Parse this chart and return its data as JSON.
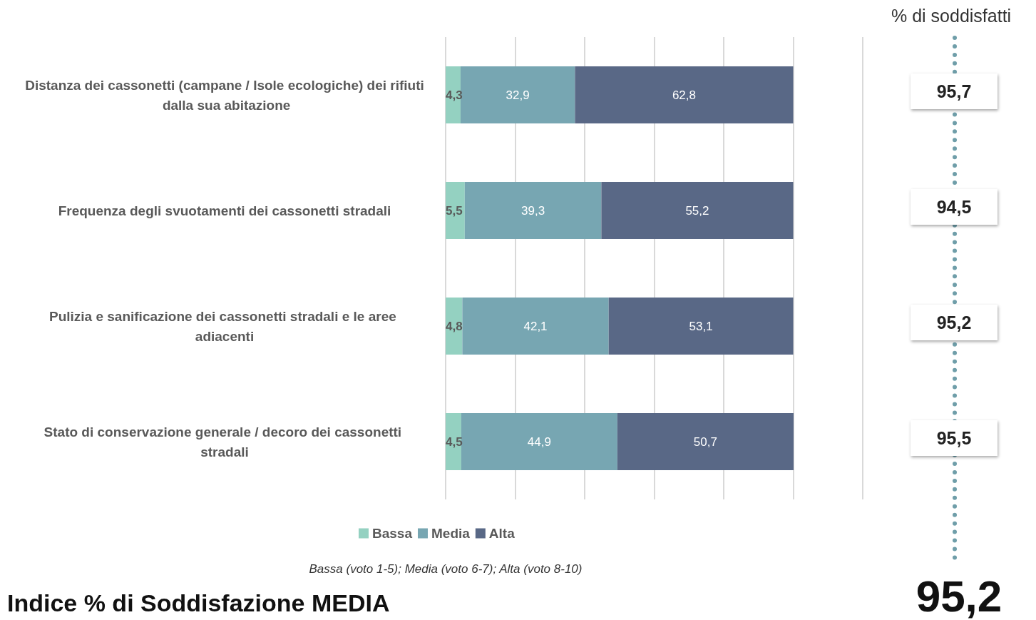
{
  "chart_data": {
    "type": "bar",
    "orientation": "horizontal",
    "stacked": true,
    "title": "Indice % di Soddisfazione MEDIA",
    "categories": [
      "Distanza dei cassonetti (campane / Isole ecologiche) dei rifiuti dalla sua abitazione",
      "Frequenza degli svuotamenti dei cassonetti stradali",
      "Pulizia e sanificazione dei cassonetti stradali e le aree adiacenti",
      "Stato di conservazione generale / decoro dei cassonetti stradali"
    ],
    "series": [
      {
        "name": "Bassa",
        "color": "#94d1c1",
        "values": [
          4.3,
          5.5,
          4.8,
          4.5
        ],
        "value_labels": [
          "4,3",
          "5,5",
          "4,8",
          "4,5"
        ]
      },
      {
        "name": "Media",
        "color": "#77a6b2",
        "values": [
          32.9,
          39.3,
          42.1,
          44.9
        ],
        "value_labels": [
          "32,9",
          "39,3",
          "42,1",
          "44,9"
        ]
      },
      {
        "name": "Alta",
        "color": "#596886",
        "values": [
          62.8,
          55.2,
          53.1,
          50.7
        ],
        "value_labels": [
          "62,8",
          "55,2",
          "53,1",
          "50,7"
        ]
      }
    ],
    "grid": "x",
    "tick_labels": "y",
    "legend": "bottom",
    "annotations": [
      "% di soddisfatti",
      "95,7",
      "94,5",
      "95,2",
      "95,5",
      "Bassa (voto 1-5); Media (voto 6-7); Alta (voto 8-10)",
      "95,2"
    ]
  }
}
